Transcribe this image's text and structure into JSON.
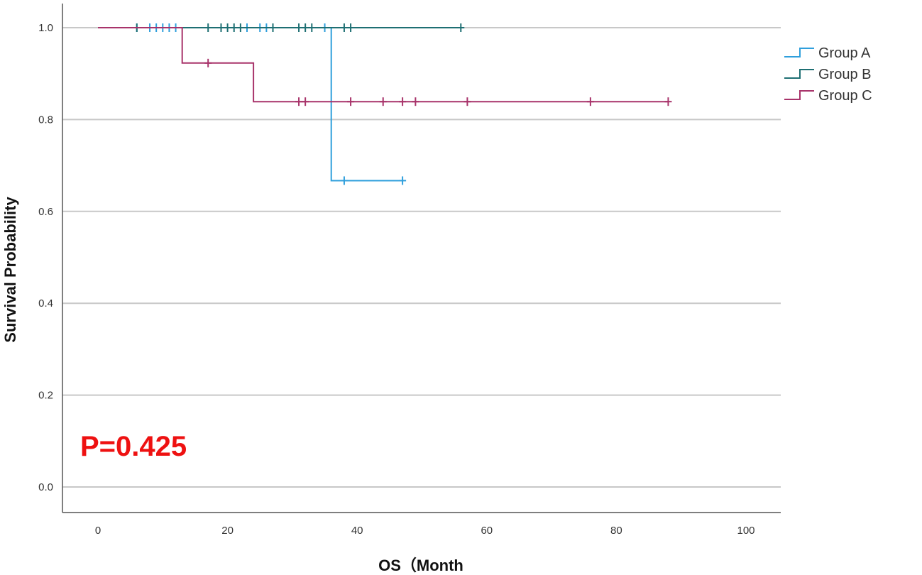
{
  "chart_data": {
    "type": "line",
    "subtype": "kaplan-meier",
    "xlabel": "OS（Month",
    "ylabel": "Survival Probability",
    "xlim": [
      0,
      100
    ],
    "ylim": [
      0,
      1.0
    ],
    "xticks": [
      0,
      20,
      40,
      60,
      80,
      100
    ],
    "yticks": [
      0.0,
      0.2,
      0.4,
      0.6,
      0.8,
      1.0
    ],
    "xtick_labels": [
      "0",
      "20",
      "40",
      "60",
      "80",
      "100"
    ],
    "ytick_labels": [
      "0.0",
      "0.2",
      "0.4",
      "0.6",
      "0.8",
      "1.0"
    ],
    "grid": "horizontal",
    "legend_position": "top-right",
    "annotation": {
      "text": "P=0.425",
      "color": "#ee1111"
    },
    "series": [
      {
        "name": "Group A",
        "color": "#2f9fdc",
        "steps": [
          [
            0,
            1.0
          ],
          [
            36,
            1.0
          ],
          [
            36,
            0.667
          ],
          [
            47,
            0.667
          ]
        ],
        "censored": [
          [
            6,
            1.0
          ],
          [
            8,
            1.0
          ],
          [
            9,
            1.0
          ],
          [
            10,
            1.0
          ],
          [
            11,
            1.0
          ],
          [
            12,
            1.0
          ],
          [
            23,
            1.0
          ],
          [
            25,
            1.0
          ],
          [
            26,
            1.0
          ],
          [
            35,
            1.0
          ],
          [
            38,
            0.667
          ],
          [
            47,
            0.667
          ]
        ]
      },
      {
        "name": "Group B",
        "color": "#1e6f73",
        "steps": [
          [
            0,
            1.0
          ],
          [
            56,
            1.0
          ]
        ],
        "censored": [
          [
            6,
            1.0
          ],
          [
            17,
            1.0
          ],
          [
            19,
            1.0
          ],
          [
            20,
            1.0
          ],
          [
            21,
            1.0
          ],
          [
            22,
            1.0
          ],
          [
            27,
            1.0
          ],
          [
            31,
            1.0
          ],
          [
            32,
            1.0
          ],
          [
            33,
            1.0
          ],
          [
            38,
            1.0
          ],
          [
            39,
            1.0
          ],
          [
            56,
            1.0
          ]
        ]
      },
      {
        "name": "Group C",
        "color": "#a8336a",
        "steps": [
          [
            0,
            1.0
          ],
          [
            13,
            1.0
          ],
          [
            13,
            0.923
          ],
          [
            24,
            0.923
          ],
          [
            24,
            0.839
          ],
          [
            88,
            0.839
          ]
        ],
        "censored": [
          [
            17,
            0.923
          ],
          [
            31,
            0.839
          ],
          [
            32,
            0.839
          ],
          [
            39,
            0.839
          ],
          [
            44,
            0.839
          ],
          [
            47,
            0.839
          ],
          [
            49,
            0.839
          ],
          [
            57,
            0.839
          ],
          [
            76,
            0.839
          ],
          [
            88,
            0.839
          ]
        ]
      }
    ]
  }
}
